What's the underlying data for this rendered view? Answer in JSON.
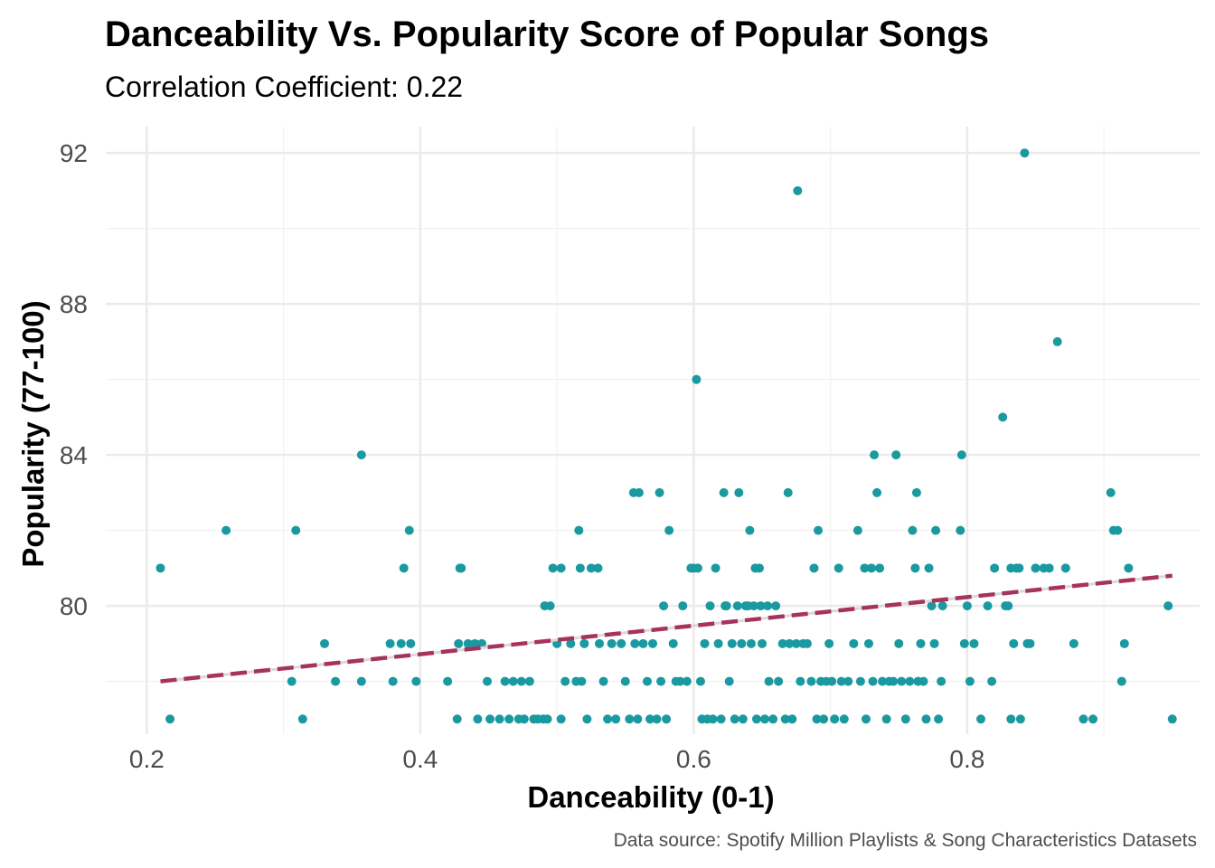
{
  "chart_data": {
    "type": "scatter",
    "title": "Danceability Vs. Popularity Score of Popular Songs",
    "subtitle": "Correlation Coefficient: 0.22",
    "xlabel": "Danceability (0-1)",
    "ylabel": "Popularity (77-100)",
    "caption": "Data source: Spotify Million Playlists & Song Characteristics Datasets",
    "xlim": [
      0.17,
      0.97
    ],
    "ylim": [
      76.6,
      92.7
    ],
    "x_ticks": [
      0.2,
      0.4,
      0.6,
      0.8
    ],
    "x_tick_labels": [
      "0.2",
      "0.4",
      "0.6",
      "0.8"
    ],
    "y_ticks": [
      80,
      84,
      88,
      92
    ],
    "y_tick_labels": [
      "80",
      "84",
      "88",
      "92"
    ],
    "x_minor": [
      0.3,
      0.5,
      0.7,
      0.9
    ],
    "y_minor": [
      78,
      82,
      86,
      90
    ],
    "grid": true,
    "legend": "none",
    "point_color": "#1a9aa0",
    "trend_color": "#a8325e",
    "trend_line": {
      "style": "dashed",
      "points": [
        [
          0.21,
          78.0
        ],
        [
          0.95,
          80.8
        ]
      ]
    },
    "points": [
      [
        0.21,
        81
      ],
      [
        0.217,
        77
      ],
      [
        0.258,
        82
      ],
      [
        0.306,
        78
      ],
      [
        0.309,
        82
      ],
      [
        0.314,
        77
      ],
      [
        0.33,
        79
      ],
      [
        0.338,
        78
      ],
      [
        0.357,
        84
      ],
      [
        0.357,
        78
      ],
      [
        0.378,
        79
      ],
      [
        0.38,
        78
      ],
      [
        0.386,
        79
      ],
      [
        0.388,
        81
      ],
      [
        0.392,
        82
      ],
      [
        0.393,
        79
      ],
      [
        0.397,
        78
      ],
      [
        0.42,
        78
      ],
      [
        0.428,
        79
      ],
      [
        0.429,
        81
      ],
      [
        0.43,
        81
      ],
      [
        0.427,
        77
      ],
      [
        0.435,
        79
      ],
      [
        0.44,
        79
      ],
      [
        0.442,
        77
      ],
      [
        0.445,
        79
      ],
      [
        0.449,
        78
      ],
      [
        0.451,
        77
      ],
      [
        0.458,
        77
      ],
      [
        0.462,
        78
      ],
      [
        0.465,
        77
      ],
      [
        0.468,
        78
      ],
      [
        0.472,
        77
      ],
      [
        0.474,
        78
      ],
      [
        0.476,
        77
      ],
      [
        0.48,
        78
      ],
      [
        0.483,
        77
      ],
      [
        0.486,
        77
      ],
      [
        0.49,
        77
      ],
      [
        0.491,
        80
      ],
      [
        0.493,
        77
      ],
      [
        0.495,
        80
      ],
      [
        0.497,
        81
      ],
      [
        0.5,
        79
      ],
      [
        0.503,
        81
      ],
      [
        0.503,
        77
      ],
      [
        0.506,
        78
      ],
      [
        0.51,
        79
      ],
      [
        0.514,
        78
      ],
      [
        0.516,
        82
      ],
      [
        0.517,
        81
      ],
      [
        0.518,
        78
      ],
      [
        0.52,
        79
      ],
      [
        0.522,
        77
      ],
      [
        0.525,
        81
      ],
      [
        0.53,
        81
      ],
      [
        0.531,
        79
      ],
      [
        0.534,
        78
      ],
      [
        0.537,
        77
      ],
      [
        0.54,
        79
      ],
      [
        0.543,
        77
      ],
      [
        0.547,
        79
      ],
      [
        0.55,
        78
      ],
      [
        0.553,
        77
      ],
      [
        0.556,
        83
      ],
      [
        0.557,
        79
      ],
      [
        0.559,
        77
      ],
      [
        0.56,
        83
      ],
      [
        0.563,
        79
      ],
      [
        0.566,
        78
      ],
      [
        0.568,
        77
      ],
      [
        0.57,
        79
      ],
      [
        0.573,
        77
      ],
      [
        0.575,
        83
      ],
      [
        0.576,
        78
      ],
      [
        0.578,
        80
      ],
      [
        0.58,
        77
      ],
      [
        0.582,
        82
      ],
      [
        0.585,
        79
      ],
      [
        0.587,
        78
      ],
      [
        0.59,
        78
      ],
      [
        0.592,
        80
      ],
      [
        0.595,
        78
      ],
      [
        0.598,
        81
      ],
      [
        0.6,
        81
      ],
      [
        0.602,
        86
      ],
      [
        0.603,
        81
      ],
      [
        0.605,
        78
      ],
      [
        0.606,
        77
      ],
      [
        0.608,
        79
      ],
      [
        0.61,
        77
      ],
      [
        0.612,
        80
      ],
      [
        0.614,
        77
      ],
      [
        0.616,
        81
      ],
      [
        0.618,
        79
      ],
      [
        0.62,
        77
      ],
      [
        0.622,
        83
      ],
      [
        0.623,
        80
      ],
      [
        0.624,
        80
      ],
      [
        0.626,
        78
      ],
      [
        0.628,
        79
      ],
      [
        0.63,
        77
      ],
      [
        0.632,
        80
      ],
      [
        0.633,
        83
      ],
      [
        0.635,
        79
      ],
      [
        0.636,
        77
      ],
      [
        0.638,
        80
      ],
      [
        0.64,
        80
      ],
      [
        0.641,
        82
      ],
      [
        0.642,
        79
      ],
      [
        0.644,
        80
      ],
      [
        0.645,
        81
      ],
      [
        0.646,
        77
      ],
      [
        0.648,
        81
      ],
      [
        0.649,
        80
      ],
      [
        0.65,
        79
      ],
      [
        0.652,
        77
      ],
      [
        0.654,
        80
      ],
      [
        0.655,
        78
      ],
      [
        0.658,
        77
      ],
      [
        0.66,
        80
      ],
      [
        0.662,
        78
      ],
      [
        0.665,
        79
      ],
      [
        0.667,
        77
      ],
      [
        0.669,
        83
      ],
      [
        0.67,
        79
      ],
      [
        0.672,
        77
      ],
      [
        0.675,
        79
      ],
      [
        0.676,
        91
      ],
      [
        0.678,
        78
      ],
      [
        0.68,
        79
      ],
      [
        0.683,
        79
      ],
      [
        0.686,
        78
      ],
      [
        0.688,
        81
      ],
      [
        0.69,
        77
      ],
      [
        0.691,
        82
      ],
      [
        0.693,
        78
      ],
      [
        0.695,
        77
      ],
      [
        0.697,
        78
      ],
      [
        0.699,
        79
      ],
      [
        0.701,
        78
      ],
      [
        0.703,
        77
      ],
      [
        0.706,
        81
      ],
      [
        0.708,
        78
      ],
      [
        0.71,
        77
      ],
      [
        0.713,
        78
      ],
      [
        0.717,
        79
      ],
      [
        0.72,
        82
      ],
      [
        0.722,
        78
      ],
      [
        0.725,
        81
      ],
      [
        0.726,
        77
      ],
      [
        0.728,
        79
      ],
      [
        0.73,
        81
      ],
      [
        0.731,
        78
      ],
      [
        0.732,
        84
      ],
      [
        0.734,
        83
      ],
      [
        0.736,
        81
      ],
      [
        0.738,
        78
      ],
      [
        0.741,
        77
      ],
      [
        0.743,
        78
      ],
      [
        0.746,
        78
      ],
      [
        0.748,
        84
      ],
      [
        0.75,
        79
      ],
      [
        0.752,
        78
      ],
      [
        0.755,
        77
      ],
      [
        0.758,
        78
      ],
      [
        0.76,
        82
      ],
      [
        0.762,
        81
      ],
      [
        0.763,
        83
      ],
      [
        0.764,
        78
      ],
      [
        0.766,
        79
      ],
      [
        0.768,
        78
      ],
      [
        0.77,
        77
      ],
      [
        0.772,
        81
      ],
      [
        0.774,
        80
      ],
      [
        0.776,
        79
      ],
      [
        0.777,
        82
      ],
      [
        0.779,
        77
      ],
      [
        0.781,
        78
      ],
      [
        0.782,
        80
      ],
      [
        0.795,
        82
      ],
      [
        0.796,
        84
      ],
      [
        0.798,
        79
      ],
      [
        0.8,
        80
      ],
      [
        0.802,
        78
      ],
      [
        0.805,
        79
      ],
      [
        0.81,
        77
      ],
      [
        0.815,
        80
      ],
      [
        0.818,
        78
      ],
      [
        0.82,
        81
      ],
      [
        0.826,
        85
      ],
      [
        0.828,
        80
      ],
      [
        0.83,
        80
      ],
      [
        0.832,
        81
      ],
      [
        0.834,
        79
      ],
      [
        0.836,
        81
      ],
      [
        0.838,
        81
      ],
      [
        0.842,
        92
      ],
      [
        0.844,
        79
      ],
      [
        0.846,
        79
      ],
      [
        0.839,
        77
      ],
      [
        0.832,
        77
      ],
      [
        0.85,
        81
      ],
      [
        0.856,
        81
      ],
      [
        0.86,
        81
      ],
      [
        0.866,
        87
      ],
      [
        0.872,
        81
      ],
      [
        0.878,
        79
      ],
      [
        0.885,
        77
      ],
      [
        0.892,
        77
      ],
      [
        0.905,
        83
      ],
      [
        0.907,
        82
      ],
      [
        0.91,
        82
      ],
      [
        0.913,
        78
      ],
      [
        0.915,
        79
      ],
      [
        0.918,
        81
      ],
      [
        0.947,
        80
      ],
      [
        0.95,
        77
      ]
    ]
  }
}
